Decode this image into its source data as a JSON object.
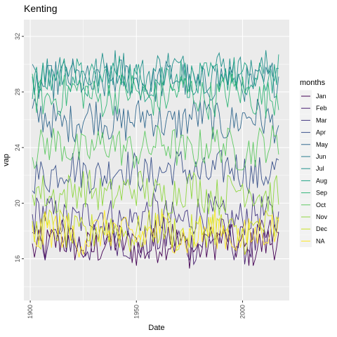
{
  "chart_data": {
    "type": "line",
    "title": "Kenting",
    "xlabel": "Date",
    "ylabel": "vap",
    "xlim": [
      1897,
      2022
    ],
    "ylim": [
      13,
      33.2
    ],
    "x_ticks": [
      1900,
      1950,
      2000
    ],
    "y_ticks": [
      16,
      20,
      24,
      28,
      32
    ],
    "grid": true,
    "legend": {
      "title": "months",
      "position": "right"
    },
    "x_start_year": 1901,
    "x_end_year": 2017,
    "series": [
      {
        "name": "Jan",
        "color": "#440154",
        "mean": 17.0,
        "amp": 0.9,
        "values": []
      },
      {
        "name": "Feb",
        "color": "#481F70",
        "mean": 17.3,
        "amp": 0.9,
        "values": []
      },
      {
        "name": "Mar",
        "color": "#443983",
        "mean": 19.0,
        "amp": 0.9,
        "values": []
      },
      {
        "name": "Apr",
        "color": "#3B528B",
        "mean": 22.3,
        "amp": 0.9,
        "values": []
      },
      {
        "name": "May",
        "color": "#31688E",
        "mean": 26.0,
        "amp": 0.9,
        "values": []
      },
      {
        "name": "Jun",
        "color": "#287C8E",
        "mean": 28.8,
        "amp": 0.9,
        "values": []
      },
      {
        "name": "Jul",
        "color": "#21918C",
        "mean": 29.5,
        "amp": 0.9,
        "values": []
      },
      {
        "name": "Aug",
        "color": "#20A486",
        "mean": 29.0,
        "amp": 0.9,
        "values": []
      },
      {
        "name": "Sep",
        "color": "#35B779",
        "mean": 27.8,
        "amp": 0.9,
        "values": []
      },
      {
        "name": "Oct",
        "color": "#5EC962",
        "mean": 24.0,
        "amp": 0.9,
        "values": []
      },
      {
        "name": "Nov",
        "color": "#90D743",
        "mean": 20.8,
        "amp": 0.9,
        "values": []
      },
      {
        "name": "Dec",
        "color": "#C8E020",
        "mean": 18.0,
        "amp": 0.9,
        "values": []
      },
      {
        "name": "NA",
        "color": "#FDE725",
        "mean": 17.8,
        "amp": 0.9,
        "values": []
      }
    ]
  }
}
